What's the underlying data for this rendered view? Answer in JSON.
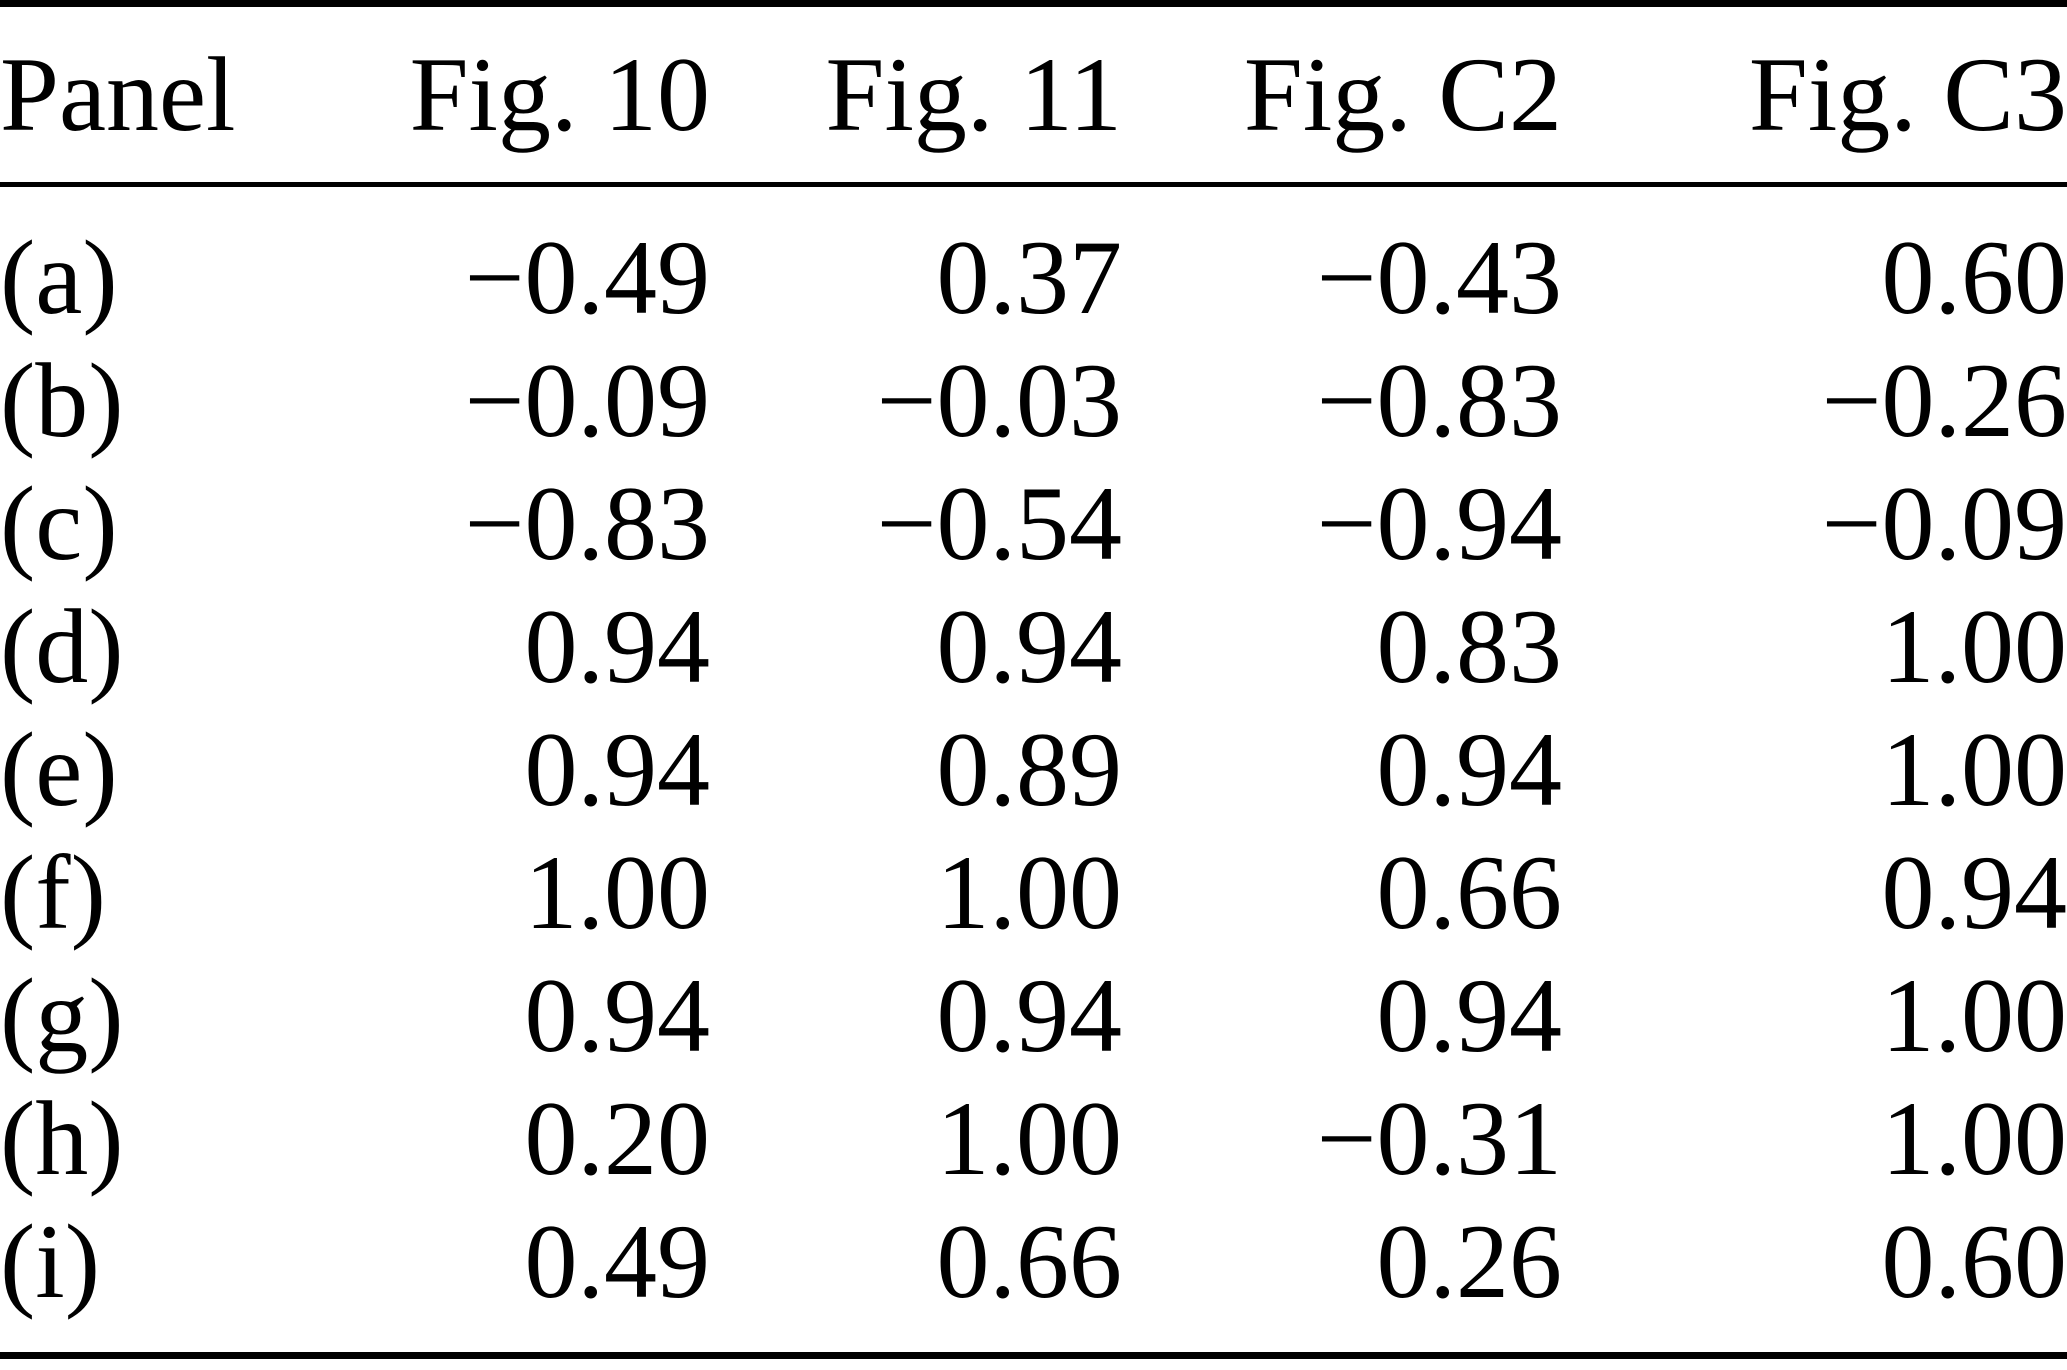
{
  "page": {
    "background_color": "#ffffff",
    "text_color": "#000000",
    "rule_color": "#000000"
  },
  "chart_data": {
    "type": "table",
    "columns": [
      "Panel",
      "Fig. 10",
      "Fig. 11",
      "Fig. C2",
      "Fig. C3"
    ],
    "rows": [
      {
        "panel": "(a)",
        "values": [
          "−0.49",
          "0.37",
          "−0.43",
          "0.60"
        ]
      },
      {
        "panel": "(b)",
        "values": [
          "−0.09",
          "−0.03",
          "−0.83",
          "−0.26"
        ]
      },
      {
        "panel": "(c)",
        "values": [
          "−0.83",
          "−0.54",
          "−0.94",
          "−0.09"
        ]
      },
      {
        "panel": "(d)",
        "values": [
          "0.94",
          "0.94",
          "0.83",
          "1.00"
        ]
      },
      {
        "panel": "(e)",
        "values": [
          "0.94",
          "0.89",
          "0.94",
          "1.00"
        ]
      },
      {
        "panel": "(f)",
        "values": [
          "1.00",
          "1.00",
          "0.66",
          "0.94"
        ]
      },
      {
        "panel": "(g)",
        "values": [
          "0.94",
          "0.94",
          "0.94",
          "1.00"
        ]
      },
      {
        "panel": "(h)",
        "values": [
          "0.20",
          "1.00",
          "−0.31",
          "1.00"
        ]
      },
      {
        "panel": "(i)",
        "values": [
          "0.49",
          "0.66",
          "0.26",
          "0.60"
        ]
      }
    ]
  }
}
